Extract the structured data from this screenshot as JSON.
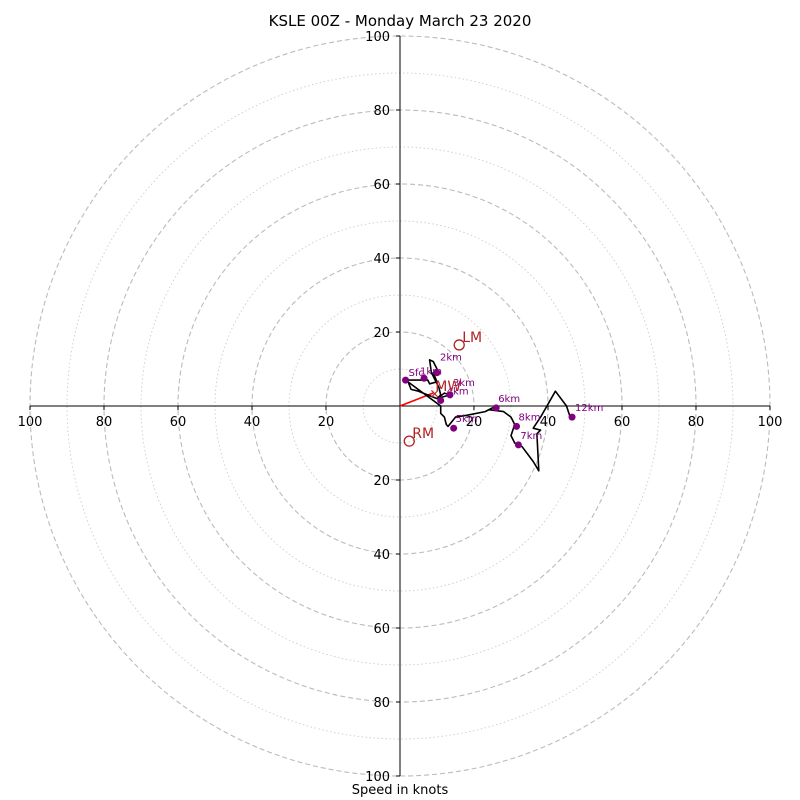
{
  "chart_data": {
    "type": "hodograph",
    "title": "KSLE 00Z - Monday March 23 2020",
    "xlabel": "Speed in knots",
    "ylabel": "",
    "range": 100,
    "ring_step": 20,
    "minor_ring_step": 10,
    "tick_labels": [
      "100",
      "80",
      "60",
      "40",
      "20",
      "20",
      "40",
      "60",
      "80",
      "100"
    ],
    "trace": [
      [
        1.5,
        7
      ],
      [
        5,
        7
      ],
      [
        7.5,
        7
      ],
      [
        8,
        6
      ],
      [
        10,
        6.5
      ],
      [
        9,
        9
      ],
      [
        10,
        10
      ],
      [
        9,
        12
      ],
      [
        8,
        12.5
      ],
      [
        8.5,
        9
      ],
      [
        9,
        8
      ],
      [
        10,
        6
      ],
      [
        10.5,
        5
      ],
      [
        11,
        3
      ],
      [
        10,
        2
      ],
      [
        12,
        3.5
      ],
      [
        13.5,
        3
      ],
      [
        10,
        2
      ],
      [
        5,
        4
      ],
      [
        3,
        4.5
      ],
      [
        2,
        7
      ],
      [
        1.5,
        7
      ],
      [
        11,
        0
      ],
      [
        11,
        -2
      ],
      [
        12,
        -3
      ],
      [
        12.5,
        -5
      ],
      [
        13,
        -5.5
      ],
      [
        15,
        -3
      ],
      [
        18,
        -2.5
      ],
      [
        23,
        -1.5
      ],
      [
        26,
        0
      ],
      [
        24,
        -1
      ],
      [
        28,
        -1.5
      ],
      [
        30,
        -3
      ],
      [
        31,
        -5
      ],
      [
        30,
        -8
      ],
      [
        31,
        -10
      ],
      [
        33,
        -11
      ],
      [
        36,
        -15
      ],
      [
        37.5,
        -17.5
      ],
      [
        37,
        -7.5
      ],
      [
        38,
        -6.5
      ],
      [
        36,
        -6
      ],
      [
        38,
        -3
      ],
      [
        42,
        4
      ],
      [
        45,
        0
      ],
      [
        46,
        -3
      ]
    ],
    "height_points": [
      {
        "label": "Sfc",
        "x": 1.5,
        "y": 7
      },
      {
        "label": "1km",
        "x": 6.5,
        "y": 7.5
      },
      {
        "label": "2km",
        "x": 10,
        "y": 9
      },
      {
        "label": "3km",
        "x": 13.5,
        "y": 3
      },
      {
        "label": "4km",
        "x": 11,
        "y": 1.5
      },
      {
        "label": "5km",
        "x": 14.5,
        "y": -6
      },
      {
        "label": "6km",
        "x": 26,
        "y": -0.5
      },
      {
        "label": "7km",
        "x": 32,
        "y": -10.5
      },
      {
        "label": "8km",
        "x": 31.5,
        "y": -5.5
      },
      {
        "label": "12km",
        "x": 46.5,
        "y": -3
      }
    ],
    "height_labels_shown": [
      "Sfc",
      "1km",
      "2km",
      "3km",
      "4km",
      "5km",
      "6km",
      "7km",
      "8km",
      "12km"
    ],
    "storm_motion": [
      {
        "label": "LM",
        "x": 16,
        "y": 16.5
      },
      {
        "label": "MW",
        "x": 9,
        "y": 3.5
      },
      {
        "label": "RM",
        "x": 2.5,
        "y": -9.5
      }
    ],
    "shear_vector": {
      "x0": 0,
      "y0": 0,
      "x1": 9,
      "y1": 3.5,
      "color": "#ff0000"
    },
    "colors": {
      "trace": "#000000",
      "points": "#800080",
      "labels": "#800080",
      "storm_motion": "#b22222",
      "grid": "#bbbbbb"
    }
  }
}
